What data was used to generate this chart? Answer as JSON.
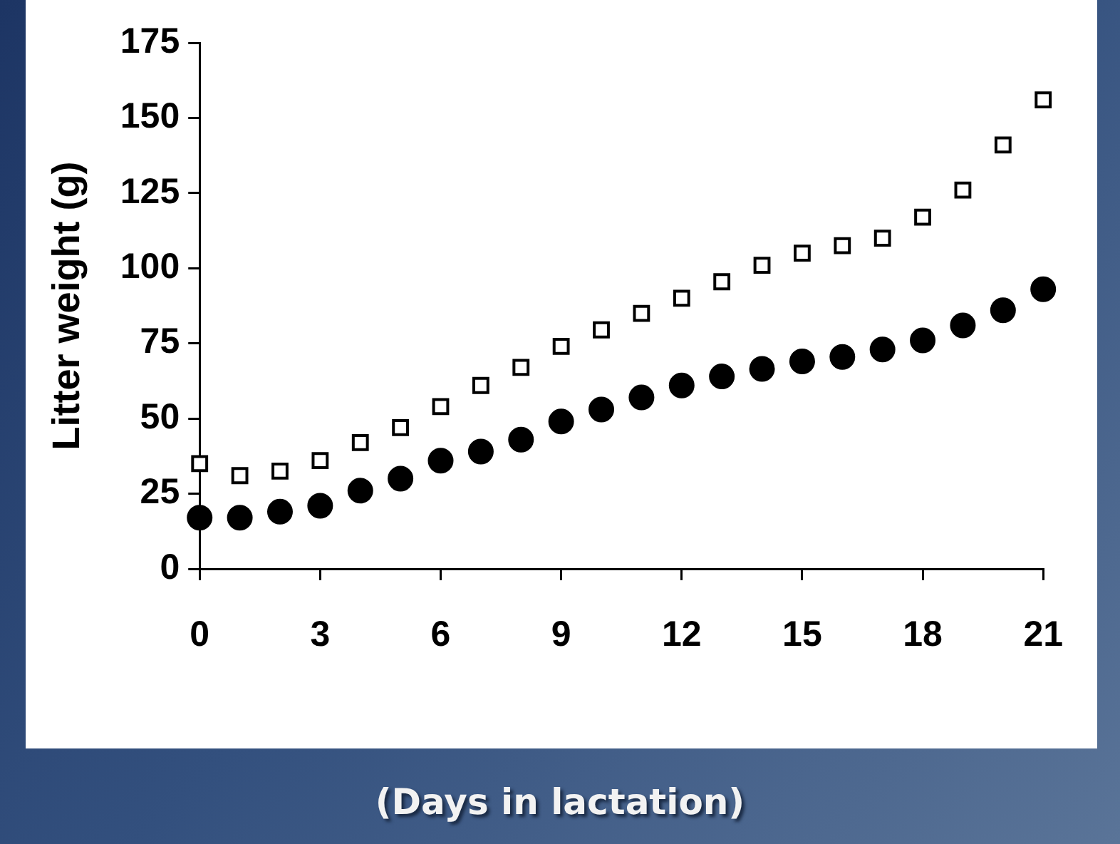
{
  "chart_data": {
    "type": "scatter",
    "xlabel": "(Days in lactation)",
    "ylabel": "Litter weight (g)",
    "x": [
      0,
      1,
      2,
      3,
      4,
      5,
      6,
      7,
      8,
      9,
      10,
      11,
      12,
      13,
      14,
      15,
      16,
      17,
      18,
      19,
      20,
      21
    ],
    "series": [
      {
        "color": "#000000",
        "marker": "square",
        "values": [
          35,
          31,
          32.5,
          36,
          42,
          47,
          54,
          61,
          67,
          74,
          79.5,
          85,
          90,
          95.5,
          101,
          105,
          107.5,
          110,
          117,
          126,
          141,
          156
        ]
      },
      {
        "color": "#000000",
        "marker": "circle",
        "values": [
          17,
          17,
          19,
          21,
          26,
          30,
          36,
          39,
          43,
          49,
          53,
          57,
          61,
          64,
          66.5,
          69,
          70.5,
          73,
          76,
          81,
          86,
          93
        ]
      }
    ],
    "xlim": [
      0,
      21
    ],
    "xticks": [
      0,
      3,
      6,
      9,
      12,
      15,
      18,
      21
    ],
    "ylim": [
      0,
      175
    ],
    "yticks": [
      0,
      25,
      50,
      75,
      100,
      125,
      150,
      175
    ],
    "grid": false,
    "legend": false
  }
}
